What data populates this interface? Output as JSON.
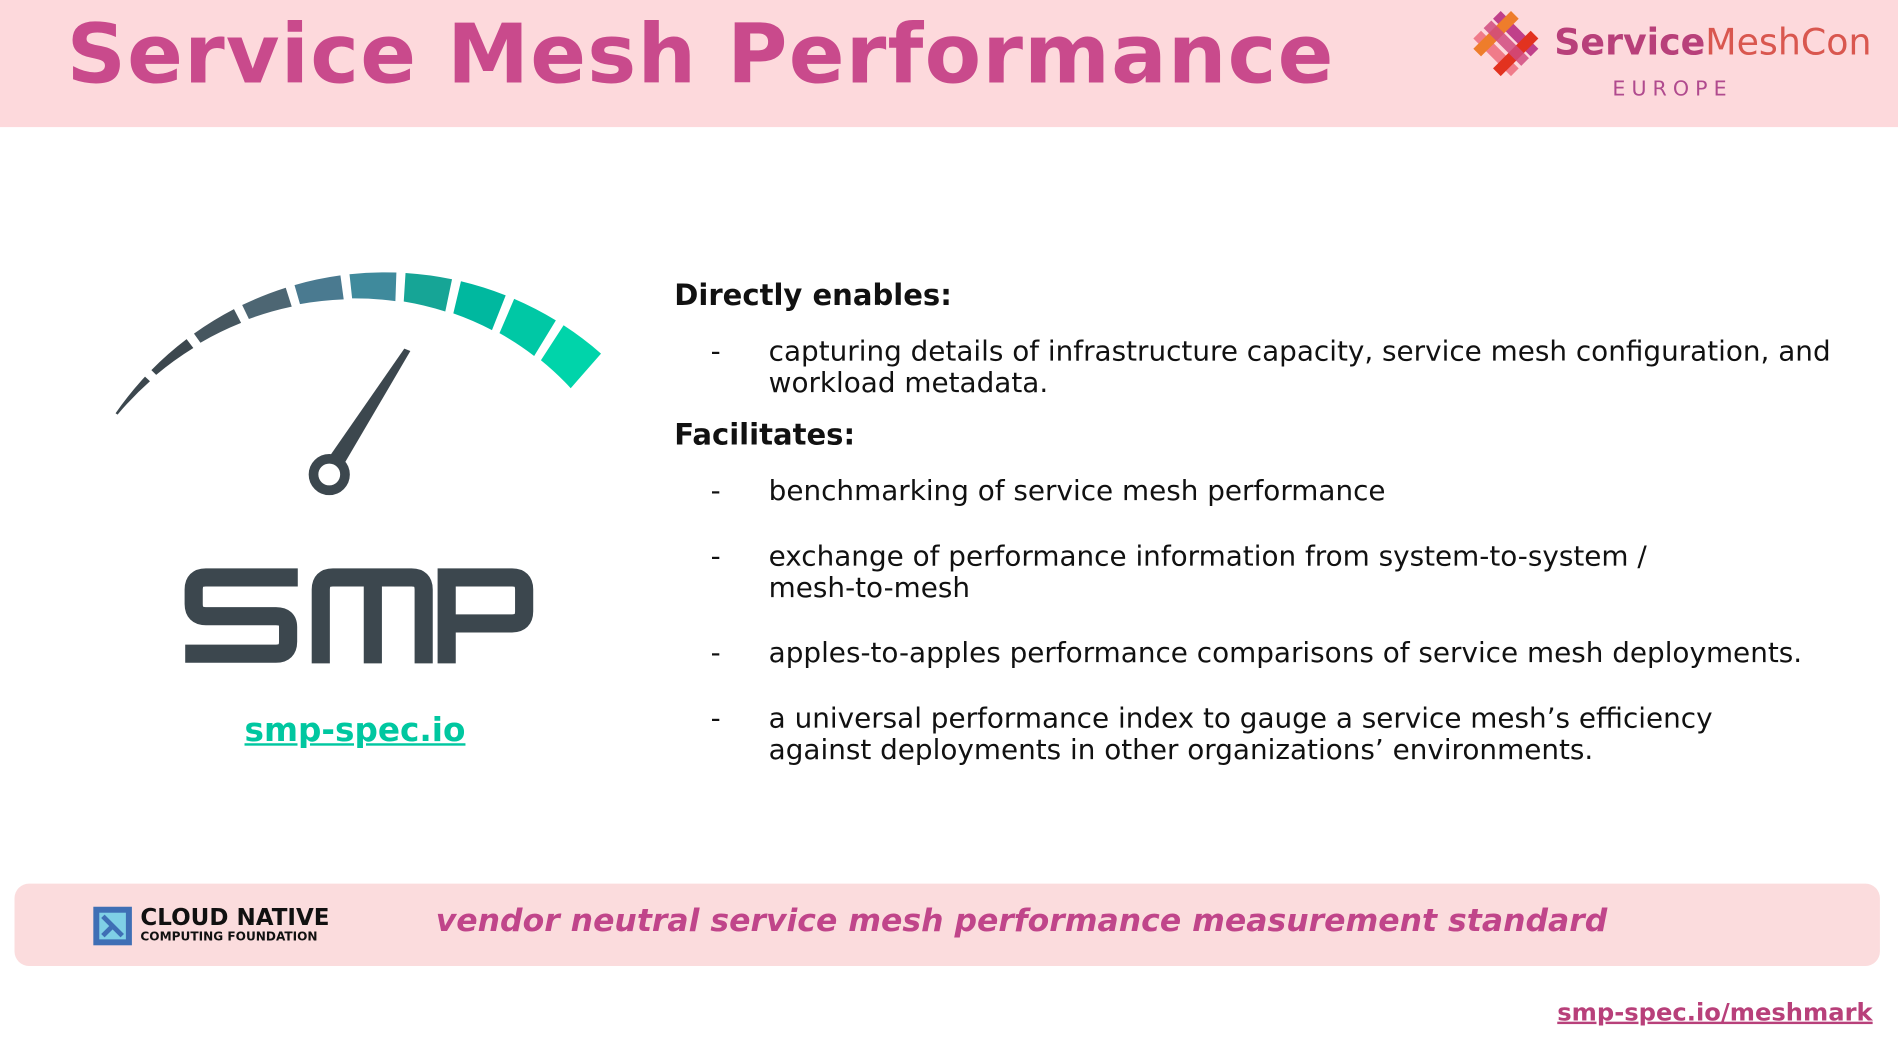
{
  "header": {
    "title": "Service Mesh Performance",
    "event_logo": {
      "part1": "Service",
      "part2": "MeshCon",
      "region": "EUROPE"
    }
  },
  "left": {
    "logo_text": "smp",
    "link": "smp-spec.io"
  },
  "content": {
    "heading1": "Directly enables:",
    "enables": [
      {
        "dash": "-",
        "text": "capturing details of infrastructure capacity, service mesh configuration, and workload metadata."
      }
    ],
    "heading2": "Facilitates:",
    "facilitates": [
      {
        "dash": "-",
        "text": "benchmarking of service mesh performance"
      },
      {
        "dash": "-",
        "text": "exchange of performance information from system-to-system / mesh-to-mesh"
      },
      {
        "dash": "-",
        "text": "apples-to-apples performance comparisons of service mesh deployments."
      },
      {
        "dash": "-",
        "text": "a universal performance index to gauge a service mesh’s efficiency against deployments in other organizations’ environments."
      }
    ]
  },
  "footer": {
    "cncf_line1": "CLOUD NATIVE",
    "cncf_line2": "COMPUTING FOUNDATION",
    "tagline": "vendor neutral service mesh performance measurement standard"
  },
  "bottom_link": "smp-spec.io/meshmark",
  "colors": {
    "accent": "#c94a8c",
    "header_bg": "#fdd9dc",
    "teal": "#00c7a0",
    "dark": "#3c474e"
  }
}
